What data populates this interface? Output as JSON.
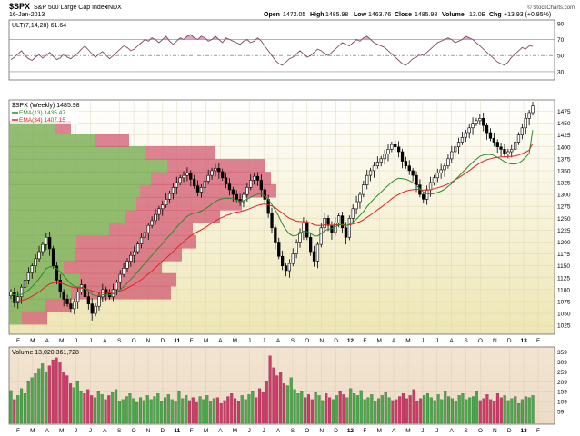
{
  "header": {
    "symbol": "$SPX",
    "name": "S&P 500 Large Cap Index",
    "exchange": "INDX",
    "date": "16-Jan-2013",
    "open_label": "Open",
    "open": "1472.05",
    "high_label": "High",
    "high": "1485.98",
    "low_label": "Low",
    "low": "1463.76",
    "close_label": "Close",
    "close": "1485.98",
    "volume_label": "Volume",
    "volume": "13.0B",
    "chg_label": "Chg",
    "chg": "+13.93 (+0.95%)",
    "copyright": "© StockCharts.com"
  },
  "colors": {
    "bg_top": "#ffffff",
    "bg_bottom": "#eee6b4",
    "ult_line": "#7a4a66",
    "ult_fill": "#c35c9a",
    "ema13": "#2b8a2b",
    "ema34": "#e02424",
    "vbp_up": "#7fb25a",
    "vbp_down": "#d25a72",
    "vol_up": "#4aa84a",
    "vol_down": "#d03868",
    "candle": "#000000"
  },
  "chart_data": [
    {
      "type": "line",
      "indicator": "ULT(7,14,28)",
      "label": "ULT(7,14,28) 61.64",
      "y_ticks": [
        30,
        50,
        70,
        90
      ],
      "ylim": [
        22,
        92
      ],
      "reference_lines": [
        30,
        50,
        70
      ],
      "values": [
        45,
        48,
        52,
        56,
        50,
        46,
        44,
        48,
        51,
        47,
        50,
        54,
        49,
        45,
        47,
        52,
        48,
        46,
        50,
        53,
        58,
        62,
        57,
        52,
        48,
        52,
        55,
        50,
        46,
        50,
        54,
        58,
        62,
        60,
        56,
        58,
        62,
        66,
        70,
        68,
        72,
        70,
        66,
        70,
        74,
        68,
        64,
        68,
        72,
        70,
        74,
        76,
        72,
        70,
        74,
        72,
        68,
        70,
        74,
        70,
        66,
        72,
        70,
        68,
        66,
        64,
        68,
        70,
        66,
        68,
        72,
        68,
        62,
        56,
        50,
        44,
        40,
        38,
        42,
        46,
        48,
        52,
        56,
        52,
        48,
        50,
        54,
        58,
        56,
        52,
        50,
        54,
        58,
        62,
        66,
        64,
        62,
        66,
        70,
        68,
        72,
        74,
        70,
        66,
        64,
        62,
        60,
        56,
        52,
        48,
        44,
        40,
        38,
        42,
        46,
        48,
        52,
        50,
        54,
        58,
        62,
        66,
        68,
        70,
        72,
        70,
        66,
        68,
        70,
        74,
        72,
        70,
        66,
        62,
        58,
        54,
        50,
        46,
        42,
        40,
        38,
        42,
        48,
        52,
        56,
        60,
        58,
        62,
        61.64
      ]
    },
    {
      "type": "candlestick",
      "title": "$SPX (Weekly) 1485.98",
      "series": [
        {
          "name": "EMA(13) 1435.47"
        },
        {
          "name": "EMA(34) 1407.15"
        }
      ],
      "ylim": [
        1010,
        1495
      ],
      "y_ticks": [
        1025,
        1050,
        1075,
        1100,
        1125,
        1150,
        1175,
        1200,
        1225,
        1250,
        1275,
        1300,
        1325,
        1350,
        1375,
        1400,
        1425,
        1450,
        1475
      ],
      "x_labels": [
        "F",
        "M",
        "A",
        "M",
        "J",
        "J",
        "A",
        "S",
        "O",
        "N",
        "D",
        "11",
        "F",
        "M",
        "A",
        "M",
        "J",
        "J",
        "A",
        "S",
        "O",
        "N",
        "D",
        "12",
        "F",
        "M",
        "A",
        "M",
        "J",
        "J",
        "A",
        "S",
        "O",
        "N",
        "D",
        "13",
        "F"
      ],
      "close": [
        1095,
        1072,
        1085,
        1105,
        1120,
        1135,
        1150,
        1165,
        1180,
        1195,
        1210,
        1186,
        1150,
        1120,
        1095,
        1080,
        1070,
        1060,
        1075,
        1095,
        1110,
        1085,
        1070,
        1050,
        1065,
        1085,
        1100,
        1092,
        1085,
        1100,
        1115,
        1132,
        1145,
        1160,
        1172,
        1180,
        1196,
        1210,
        1220,
        1235,
        1245,
        1258,
        1270,
        1278,
        1290,
        1302,
        1315,
        1325,
        1335,
        1340,
        1345,
        1332,
        1318,
        1305,
        1315,
        1328,
        1340,
        1350,
        1355,
        1348,
        1335,
        1322,
        1310,
        1300,
        1290,
        1285,
        1300,
        1315,
        1330,
        1338,
        1330,
        1310,
        1290,
        1260,
        1230,
        1200,
        1170,
        1150,
        1140,
        1155,
        1175,
        1200,
        1220,
        1240,
        1210,
        1180,
        1160,
        1195,
        1230,
        1250,
        1235,
        1220,
        1240,
        1255,
        1230,
        1210,
        1250,
        1270,
        1285,
        1300,
        1320,
        1340,
        1350,
        1360,
        1368,
        1375,
        1385,
        1395,
        1405,
        1400,
        1390,
        1370,
        1360,
        1350,
        1340,
        1320,
        1300,
        1290,
        1310,
        1325,
        1335,
        1345,
        1352,
        1360,
        1375,
        1390,
        1400,
        1410,
        1420,
        1430,
        1440,
        1450,
        1455,
        1460,
        1445,
        1430,
        1418,
        1410,
        1400,
        1395,
        1385,
        1390,
        1395,
        1410,
        1425,
        1440,
        1460,
        1472,
        1485.98
      ],
      "ema13": [
        1090,
        1089,
        1088,
        1090,
        1094,
        1099,
        1106,
        1114,
        1123,
        1133,
        1144,
        1148,
        1148,
        1144,
        1137,
        1129,
        1120,
        1112,
        1107,
        1105,
        1105,
        1102,
        1097,
        1090,
        1087,
        1087,
        1089,
        1089,
        1089,
        1091,
        1095,
        1100,
        1106,
        1114,
        1122,
        1129,
        1138,
        1147,
        1155,
        1164,
        1172,
        1181,
        1189,
        1197,
        1206,
        1214,
        1223,
        1231,
        1240,
        1247,
        1254,
        1258,
        1261,
        1262,
        1265,
        1269,
        1274,
        1280,
        1285,
        1289,
        1291,
        1292,
        1292,
        1291,
        1288,
        1286,
        1287,
        1290,
        1294,
        1298,
        1301,
        1301,
        1297,
        1290,
        1279,
        1267,
        1253,
        1238,
        1226,
        1217,
        1213,
        1214,
        1218,
        1223,
        1222,
        1219,
        1213,
        1213,
        1218,
        1224,
        1227,
        1228,
        1232,
        1236,
        1236,
        1234,
        1237,
        1242,
        1248,
        1256,
        1264,
        1274,
        1283,
        1291,
        1298,
        1305,
        1312,
        1319,
        1326,
        1331,
        1334,
        1333,
        1332,
        1329,
        1325,
        1319,
        1312,
        1305,
        1302,
        1301,
        1302,
        1304,
        1307,
        1311,
        1317,
        1323,
        1331,
        1338,
        1346,
        1353,
        1361,
        1368,
        1374,
        1380,
        1383,
        1384,
        1384,
        1382,
        1378,
        1374,
        1369,
        1366,
        1364,
        1364,
        1366,
        1371,
        1378,
        1387,
        1435.47
      ],
      "ema34": [
        1075,
        1075,
        1076,
        1077,
        1079,
        1082,
        1086,
        1090,
        1095,
        1101,
        1107,
        1112,
        1114,
        1115,
        1114,
        1112,
        1109,
        1106,
        1104,
        1103,
        1103,
        1102,
        1100,
        1097,
        1095,
        1094,
        1094,
        1094,
        1093,
        1094,
        1095,
        1097,
        1100,
        1103,
        1107,
        1111,
        1116,
        1121,
        1127,
        1133,
        1139,
        1146,
        1153,
        1160,
        1166,
        1173,
        1180,
        1187,
        1194,
        1201,
        1207,
        1213,
        1218,
        1222,
        1226,
        1230,
        1235,
        1240,
        1244,
        1249,
        1252,
        1256,
        1258,
        1261,
        1263,
        1264,
        1266,
        1268,
        1271,
        1274,
        1277,
        1279,
        1280,
        1278,
        1276,
        1272,
        1266,
        1261,
        1255,
        1250,
        1247,
        1244,
        1243,
        1243,
        1242,
        1240,
        1236,
        1235,
        1235,
        1236,
        1236,
        1235,
        1236,
        1237,
        1237,
        1235,
        1236,
        1238,
        1240,
        1243,
        1247,
        1252,
        1257,
        1262,
        1268,
        1273,
        1279,
        1285,
        1291,
        1296,
        1300,
        1304,
        1307,
        1309,
        1310,
        1311,
        1310,
        1309,
        1309,
        1310,
        1312,
        1314,
        1316,
        1319,
        1322,
        1326,
        1331,
        1335,
        1340,
        1345,
        1350,
        1356,
        1361,
        1366,
        1370,
        1373,
        1375,
        1377,
        1378,
        1379,
        1379,
        1380,
        1380,
        1381,
        1383,
        1386,
        1389,
        1393,
        1407.15
      ],
      "volume_by_price": [
        {
          "price": 1040,
          "up": 14,
          "down": 28
        },
        {
          "price": 1067,
          "up": 40,
          "down": 28
        },
        {
          "price": 1093,
          "up": 68,
          "down": 110
        },
        {
          "price": 1120,
          "up": 78,
          "down": 106
        },
        {
          "price": 1147,
          "up": 60,
          "down": 108
        },
        {
          "price": 1173,
          "up": 72,
          "down": 118
        },
        {
          "price": 1200,
          "up": 74,
          "down": 132
        },
        {
          "price": 1227,
          "up": 110,
          "down": 92
        },
        {
          "price": 1253,
          "up": 128,
          "down": 104
        },
        {
          "price": 1280,
          "up": 140,
          "down": 116
        },
        {
          "price": 1307,
          "up": 144,
          "down": 150
        },
        {
          "price": 1333,
          "up": 156,
          "down": 132
        },
        {
          "price": 1360,
          "up": 174,
          "down": 108
        },
        {
          "price": 1387,
          "up": 150,
          "down": 76
        },
        {
          "price": 1413,
          "up": 94,
          "down": 38
        },
        {
          "price": 1440,
          "up": 50,
          "down": 18
        }
      ]
    },
    {
      "type": "bar",
      "label": "Volume 13,020,361,728",
      "y_ticks_label": [
        "359",
        "309",
        "259",
        "209",
        "159",
        "109",
        "59"
      ],
      "y_ticks": [
        359,
        309,
        259,
        209,
        159,
        109,
        59
      ],
      "ylim": [
        0,
        375
      ],
      "unit": "M",
      "x_labels": [
        "F",
        "M",
        "A",
        "M",
        "J",
        "J",
        "A",
        "S",
        "O",
        "N",
        "D",
        "11",
        "F",
        "M",
        "A",
        "M",
        "J",
        "J",
        "A",
        "S",
        "O",
        "N",
        "D",
        "12",
        "F",
        "M",
        "A",
        "M",
        "J",
        "J",
        "A",
        "S",
        "O",
        "N",
        "D",
        "13",
        "F"
      ],
      "values": [
        165,
        120,
        140,
        175,
        150,
        210,
        230,
        250,
        275,
        300,
        260,
        290,
        320,
        330,
        305,
        260,
        240,
        200,
        180,
        210,
        160,
        150,
        170,
        140,
        130,
        160,
        145,
        120,
        140,
        155,
        170,
        110,
        120,
        135,
        150,
        125,
        105,
        130,
        115,
        140,
        120,
        135,
        150,
        110,
        130,
        145,
        120,
        110,
        160,
        125,
        140,
        115,
        130,
        105,
        135,
        120,
        140,
        110,
        125,
        130,
        100,
        115,
        135,
        150,
        125,
        110,
        140,
        120,
        145,
        160,
        130,
        175,
        155,
        210,
        340,
        280,
        240,
        260,
        200,
        190,
        230,
        170,
        150,
        160,
        130,
        145,
        120,
        155,
        140,
        115,
        150,
        130,
        120,
        140,
        160,
        145,
        130,
        175,
        150,
        140,
        165,
        120,
        130,
        145,
        110,
        125,
        140,
        155,
        130,
        115,
        120,
        135,
        150,
        125,
        140,
        170,
        110,
        125,
        140,
        150,
        130,
        115,
        145,
        120,
        160,
        135,
        125,
        110,
        140,
        150,
        120,
        130,
        135,
        160,
        115,
        125,
        145,
        120,
        110,
        150,
        130,
        140,
        115,
        125,
        135,
        100,
        120,
        135,
        130,
        140
      ]
    }
  ]
}
